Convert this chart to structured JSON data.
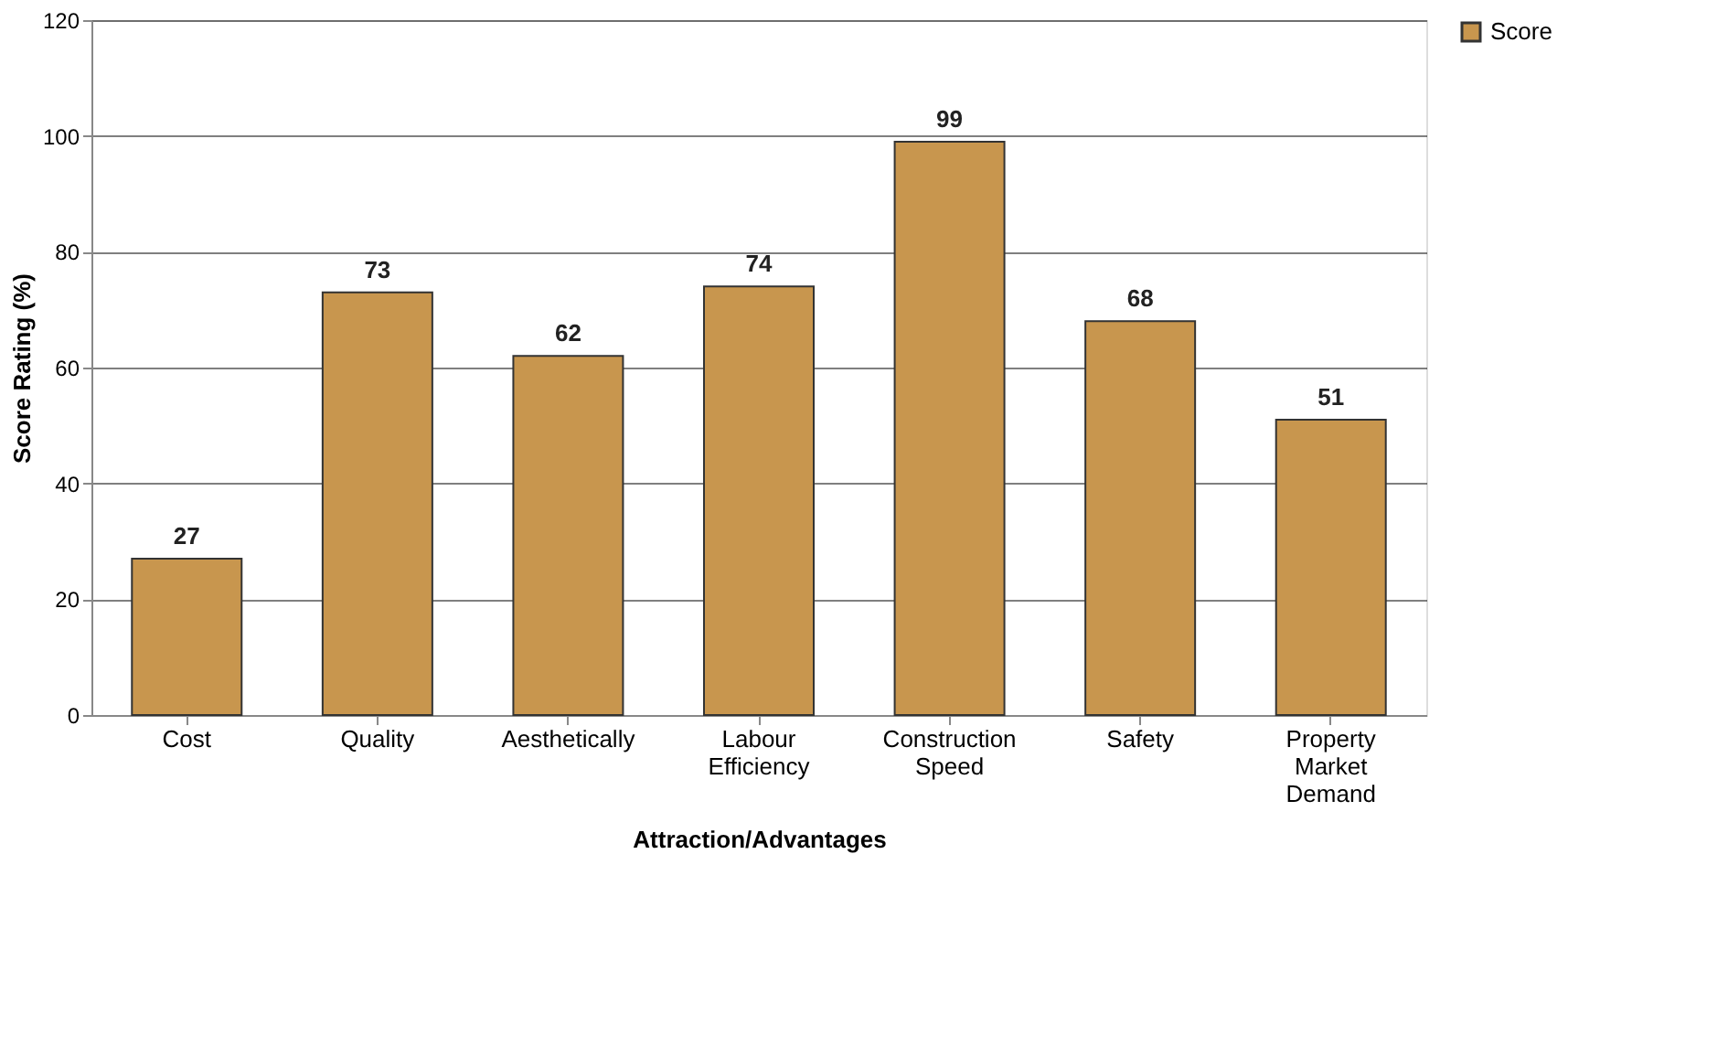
{
  "chart_data": {
    "type": "bar",
    "xlabel": "Attraction/Advantages",
    "ylabel": "Score Rating (%)",
    "categories": [
      "Cost",
      "Quality",
      "Aesthetically",
      "Labour Efficiency",
      "Construction Speed",
      "Safety",
      "Property Market Demand"
    ],
    "series": [
      {
        "name": "Score",
        "color": "#c8964e",
        "values": [
          27,
          73,
          62,
          74,
          99,
          68,
          51
        ]
      }
    ],
    "ylim": [
      0,
      120
    ],
    "yticks": [
      0,
      20,
      40,
      60,
      80,
      100,
      120
    ],
    "grid": "y",
    "legend": "right",
    "data_labels": true
  }
}
